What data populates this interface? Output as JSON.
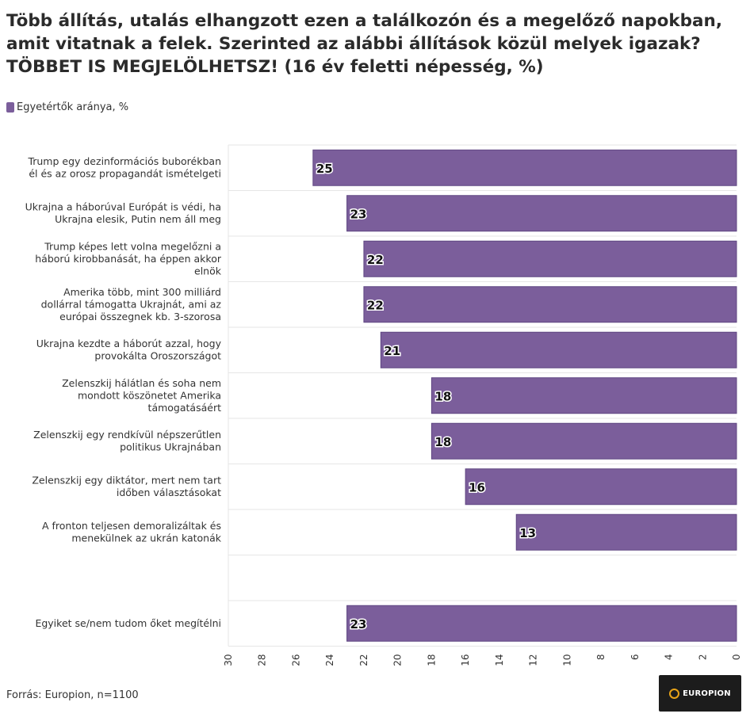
{
  "title": "Több állítás, utalás elhangzott ezen a találkozón és a megelőző napokban, amit vitatnak a felek. Szerinted az alábbi állítások közül melyek igazak? TÖBBET IS MEGJELÖLHETSZ! (16 év feletti népesség, %)",
  "legend_label": "Egyetértők aránya, %",
  "source": "Forrás: Europion, n=1100",
  "logo_text": "EUROPION",
  "colors": {
    "bar": "#7b5e9b",
    "grid": "#e6e6e6",
    "logo_bg": "#1c1c1c",
    "logo_accent": "#e8a317"
  },
  "chart_data": {
    "type": "bar",
    "orientation": "horizontal",
    "x_axis": "reversed",
    "xlim": [
      0,
      30
    ],
    "ticks": [
      "30",
      "28",
      "26",
      "24",
      "22",
      "20",
      "18",
      "16",
      "14",
      "12",
      "10",
      "8",
      "6",
      "4",
      "2",
      "0"
    ],
    "grid": true,
    "legend": "top-left",
    "series": [
      {
        "name": "Egyetértők aránya, %"
      }
    ],
    "items": [
      {
        "label": [
          "Trump egy dezinformációs buborékban",
          "él és az orosz propagandát ismételgeti"
        ],
        "value": 25
      },
      {
        "label": [
          "Ukrajna a háborúval Európát is védi, ha",
          "Ukrajna elesik, Putin nem áll meg"
        ],
        "value": 23
      },
      {
        "label": [
          "Trump képes lett volna megelőzni a",
          "háború kirobbanását, ha éppen akkor",
          "elnök"
        ],
        "value": 22
      },
      {
        "label": [
          "Amerika több, mint 300 milliárd",
          "dollárral támogatta Ukrajnát, ami az",
          "európai összegnek kb. 3-szorosa"
        ],
        "value": 22
      },
      {
        "label": [
          "Ukrajna kezdte a háborút azzal, hogy",
          "provokálta Oroszországot"
        ],
        "value": 21
      },
      {
        "label": [
          "Zelenszkij hálátlan és soha nem",
          "mondott köszönetet Amerika",
          "támogatásáért"
        ],
        "value": 18
      },
      {
        "label": [
          "Zelenszkij egy rendkívül népszerűtlen",
          "politikus Ukrajnában"
        ],
        "value": 18
      },
      {
        "label": [
          "Zelenszkij egy diktátor, mert nem tart",
          "időben választásokat"
        ],
        "value": 16
      },
      {
        "label": [
          "A fronton teljesen demoralizáltak és",
          "menekülnek az ukrán katonák"
        ],
        "value": 13
      },
      {
        "label": [
          ""
        ],
        "value": null
      },
      {
        "label": [
          "Egyiket se/nem tudom őket megítélni"
        ],
        "value": 23
      }
    ]
  }
}
